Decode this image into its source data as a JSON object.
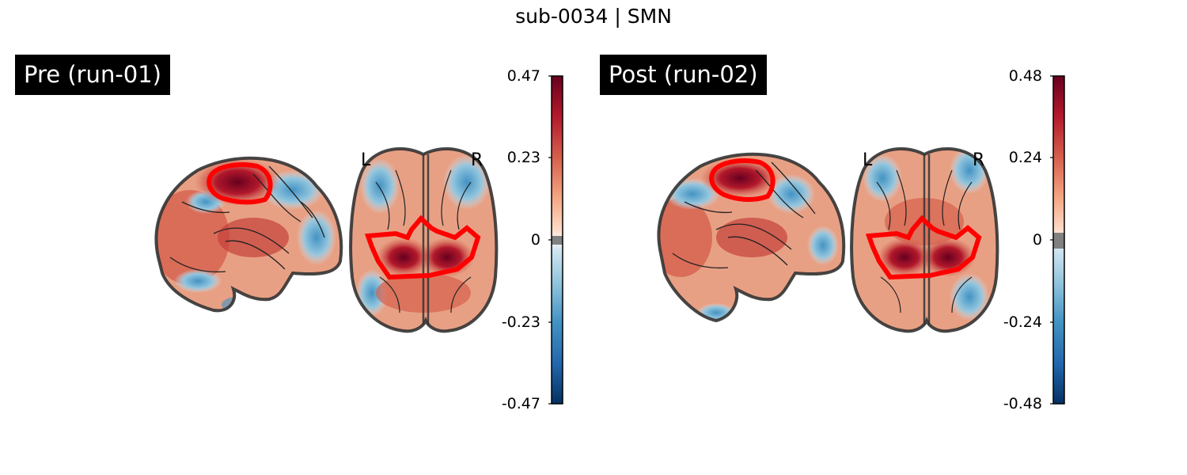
{
  "title": "sub-0034 | SMN",
  "colormap": {
    "low": "#053061",
    "mid": "#f7f7f7",
    "high": "#67001f",
    "null_band": "#808080",
    "roi_outline": "#ff0000"
  },
  "panels": [
    {
      "label": "Pre (run-01)",
      "hemisphere_left": "L",
      "hemisphere_right": "R",
      "colorbar_ticks": [
        "0.47",
        "0.23",
        "0",
        "-0.23",
        "-0.47"
      ],
      "colorbar_range": [
        -0.47,
        0.47
      ]
    },
    {
      "label": "Post (run-02)",
      "hemisphere_left": "L",
      "hemisphere_right": "R",
      "colorbar_ticks": [
        "0.48",
        "0.24",
        "0",
        "-0.24",
        "-0.48"
      ],
      "colorbar_range": [
        -0.48,
        0.48
      ]
    }
  ]
}
